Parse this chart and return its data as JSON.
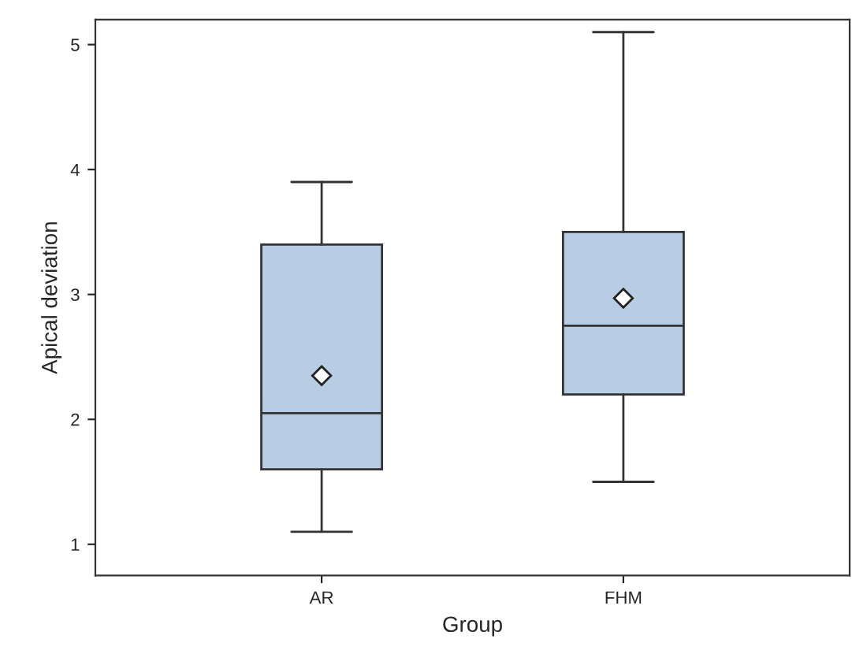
{
  "chart_data": {
    "type": "box",
    "xlabel": "Group",
    "ylabel": "Apical deviation",
    "categories": [
      "AR",
      "FHM"
    ],
    "boxes": [
      {
        "low": 1.1,
        "q1": 1.6,
        "median": 2.05,
        "q3": 3.4,
        "high": 3.9,
        "mean": 2.35
      },
      {
        "low": 1.5,
        "q1": 2.2,
        "median": 2.75,
        "q3": 3.5,
        "high": 5.1,
        "mean": 2.97
      }
    ],
    "color": "#b8cce4",
    "ylim": [
      0.75,
      5.2
    ],
    "yticks": [
      1,
      2,
      3,
      4,
      5
    ],
    "grid": false,
    "legend": false
  }
}
